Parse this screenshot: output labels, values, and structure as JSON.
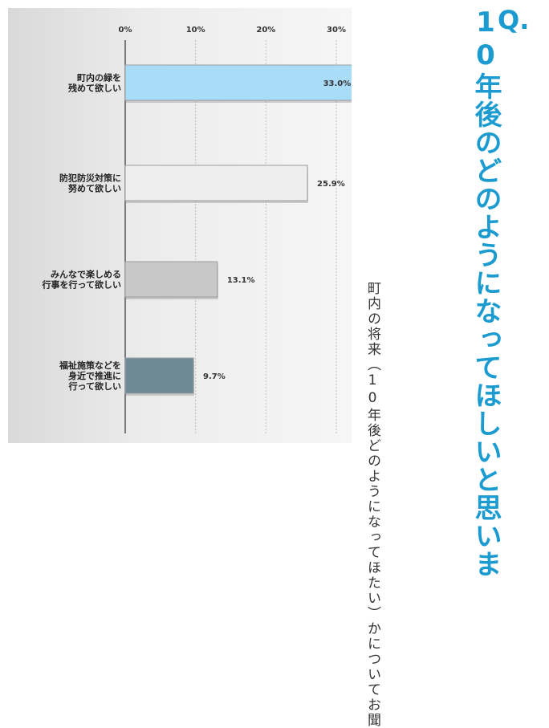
{
  "question": {
    "marker": "Q.",
    "title": "10年後のどのようになってほしいと思いま",
    "description": "町内の将来（10年後どのようになってほたい）かについてお聞"
  },
  "chart_data": {
    "type": "bar",
    "orientation": "horizontal",
    "categories": [
      "町内の緑を\n残めて欲しい",
      "防犯防災対策に\n努めて欲しい",
      "みんなで楽しめる\n行事を行って欲しい",
      "福祉施策などを\n身近で推進に\n行って欲しい"
    ],
    "values": [
      33.0,
      25.9,
      13.1,
      9.7
    ],
    "value_labels": [
      "33.0%",
      "25.9%",
      "13.1%",
      "9.7%"
    ],
    "xticks": [
      "0%",
      "10%",
      "20%",
      "30%"
    ],
    "xlim": [
      0,
      30
    ],
    "colors": [
      "#a9dcf6",
      "#eeeeee",
      "#c8c8c8",
      "#6f8a95"
    ],
    "grid": true
  }
}
